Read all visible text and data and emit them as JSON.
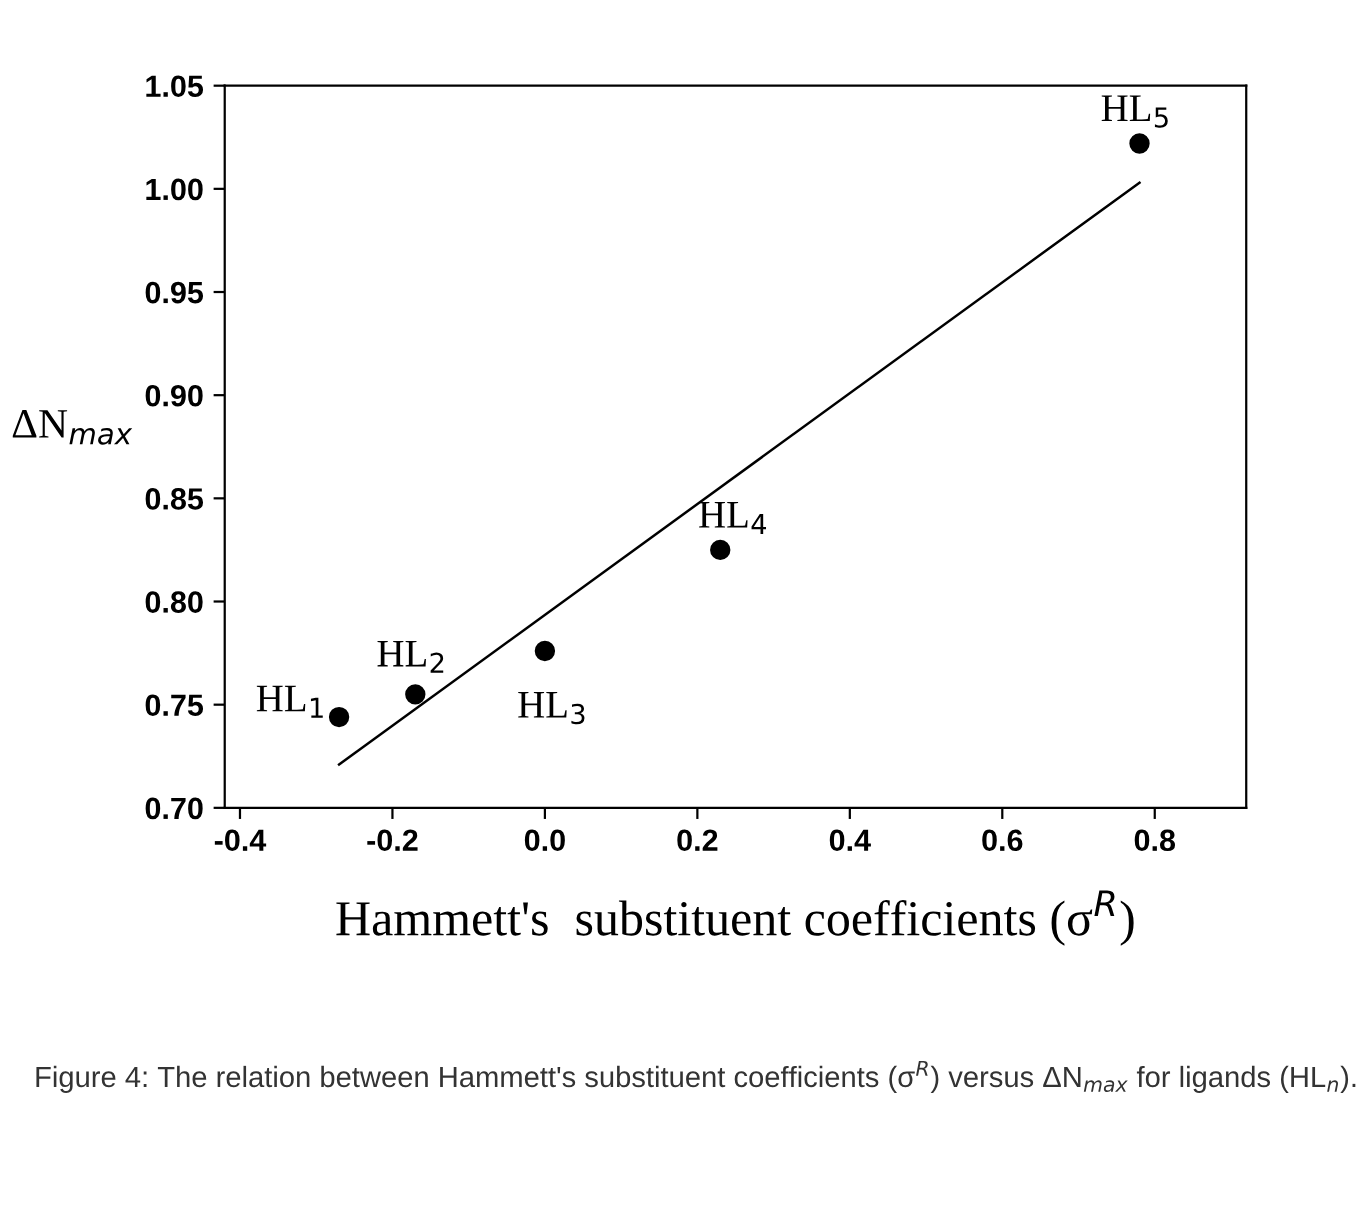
{
  "chart_data": {
    "type": "scatter",
    "xlabel": "Hammett's  substituent coefficients (σ$^{R}$)",
    "ylabel": "ΔN$_{max}$",
    "series": [
      {
        "color": "#000000",
        "marker": "circle",
        "x": [
          -0.27,
          -0.17,
          0.0,
          0.23,
          0.78
        ],
        "values": [
          0.744,
          0.755,
          0.776,
          0.825,
          1.022
        ]
      },
      {
        "type": "line",
        "color": "#000000",
        "line_style": "solid",
        "x": [
          -0.27,
          0.78
        ],
        "values": [
          0.721,
          1.003
        ]
      }
    ],
    "annotations": [
      {
        "text": "HL$_{1}$",
        "x": -0.27,
        "y": 0.744
      },
      {
        "text": "HL$_{2}$",
        "x": -0.17,
        "y": 0.755
      },
      {
        "text": "HL$_{3}$",
        "x": 0.0,
        "y": 0.776
      },
      {
        "text": "HL$_{4}$",
        "x": 0.23,
        "y": 0.825
      },
      {
        "text": "HL$_{5}$",
        "x": 0.78,
        "y": 1.022
      },
      "Figure 4: The relation between Hammett's substituent coefficients (σ$^{R}$) versus ΔN$_{max}$ for ligands (HL$_{n}$)."
    ],
    "xlim": [
      -0.42,
      0.92
    ],
    "xticks": [
      -0.4,
      -0.2,
      {
        "value": 0,
        "label": "0.0"
      },
      0.2,
      0.4,
      0.6,
      0.8
    ],
    "ylim": [
      0.7,
      1.05
    ],
    "yticks": [
      {
        "value": 0.7,
        "label": "0.70"
      },
      0.75,
      {
        "value": 0.8,
        "label": "0.80"
      },
      0.85,
      {
        "value": 0.9,
        "label": "0.90"
      },
      0.95,
      {
        "value": 1,
        "label": "1.00"
      },
      1.05
    ],
    "grid": false,
    "legend": false
  }
}
